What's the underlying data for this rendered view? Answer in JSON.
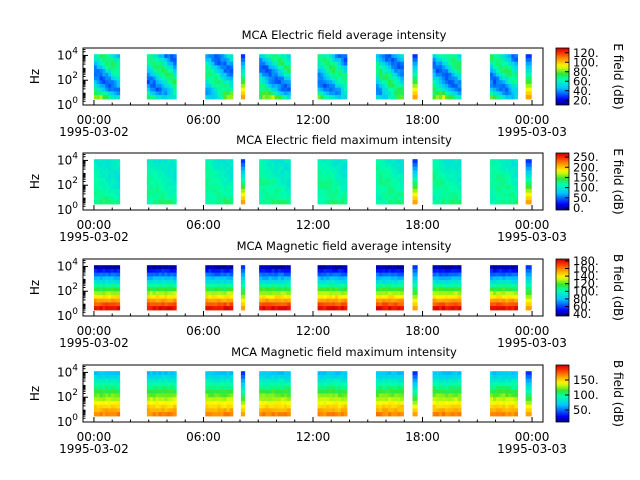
{
  "chart_data": [
    {
      "type": "heatmap",
      "title": "MCA  Electric field average intensity",
      "ylabel": "Hz",
      "colorbar_label": "E field (dB)",
      "colorbar_ticks": [
        "20.",
        "40.",
        "60.",
        "80.",
        "100.",
        "120."
      ],
      "colorbar_range": [
        10,
        130
      ],
      "ylim_log10": [
        0,
        4.6
      ],
      "y_ticks": [
        {
          "base": "10",
          "exp": "0",
          "log": 0
        },
        {
          "base": "10",
          "exp": "2",
          "log": 2
        },
        {
          "base": "10",
          "exp": "4",
          "log": 4
        }
      ],
      "data_band_log10": [
        0.5,
        4.1
      ],
      "mode": "avg",
      "base_level": 52
    },
    {
      "type": "heatmap",
      "title": "MCA  Electric field maximum intensity",
      "ylabel": "Hz",
      "colorbar_label": "E field (dB)",
      "colorbar_ticks": [
        "0.",
        "50.",
        "100.",
        "150.",
        "200.",
        "250."
      ],
      "colorbar_range": [
        -10,
        270
      ],
      "ylim_log10": [
        0,
        4.6
      ],
      "y_ticks": [
        {
          "base": "10",
          "exp": "0",
          "log": 0
        },
        {
          "base": "10",
          "exp": "2",
          "log": 2
        },
        {
          "base": "10",
          "exp": "4",
          "log": 4
        }
      ],
      "data_band_log10": [
        0.5,
        4.1
      ],
      "mode": "emax",
      "base_level": 110
    },
    {
      "type": "heatmap",
      "title": "MCA  Magnetic field average intensity",
      "ylabel": "Hz",
      "colorbar_label": "B field (dB)",
      "colorbar_ticks": [
        "40.",
        "60.",
        "80.",
        "100.",
        "120.",
        "140.",
        "160.",
        "180."
      ],
      "colorbar_range": [
        35,
        185
      ],
      "ylim_log10": [
        0,
        4.6
      ],
      "y_ticks": [
        {
          "base": "10",
          "exp": "0",
          "log": 0
        },
        {
          "base": "10",
          "exp": "2",
          "log": 2
        },
        {
          "base": "10",
          "exp": "4",
          "log": 4
        }
      ],
      "data_band_log10": [
        0.5,
        4.1
      ],
      "mode": "bavg",
      "base_level": 110
    },
    {
      "type": "heatmap",
      "title": "MCA  Magnetic field maximum intensity",
      "ylabel": "Hz",
      "colorbar_label": "B field (dB)",
      "colorbar_ticks": [
        "50.",
        "100.",
        "150."
      ],
      "colorbar_range": [
        10,
        200
      ],
      "ylim_log10": [
        0,
        4.6
      ],
      "y_ticks": [
        {
          "base": "10",
          "exp": "0",
          "log": 0
        },
        {
          "base": "10",
          "exp": "2",
          "log": 2
        },
        {
          "base": "10",
          "exp": "4",
          "log": 4
        }
      ],
      "data_band_log10": [
        0.5,
        4.1
      ],
      "mode": "bmax",
      "base_level": 120
    }
  ],
  "time_axis": {
    "range_hours": [
      -0.6,
      24.6
    ],
    "ticks": [
      {
        "hour": 0,
        "label": "00:00"
      },
      {
        "hour": 6,
        "label": "06:00"
      },
      {
        "hour": 12,
        "label": "12:00"
      },
      {
        "hour": 18,
        "label": "18:00"
      },
      {
        "hour": 24,
        "label": "00:00"
      }
    ],
    "date_labels": [
      {
        "hour": 0,
        "label": "1995-03-02"
      },
      {
        "hour": 24,
        "label": "1995-03-03"
      }
    ]
  },
  "data_intervals_hours": [
    [
      0.0,
      1.4
    ],
    [
      2.9,
      4.5
    ],
    [
      6.1,
      7.6
    ],
    [
      8.05,
      8.25
    ],
    [
      9.05,
      10.75
    ],
    [
      12.25,
      13.85
    ],
    [
      15.45,
      16.95
    ],
    [
      17.45,
      17.7
    ],
    [
      18.55,
      20.1
    ],
    [
      21.7,
      23.2
    ],
    [
      23.65,
      23.95
    ]
  ]
}
